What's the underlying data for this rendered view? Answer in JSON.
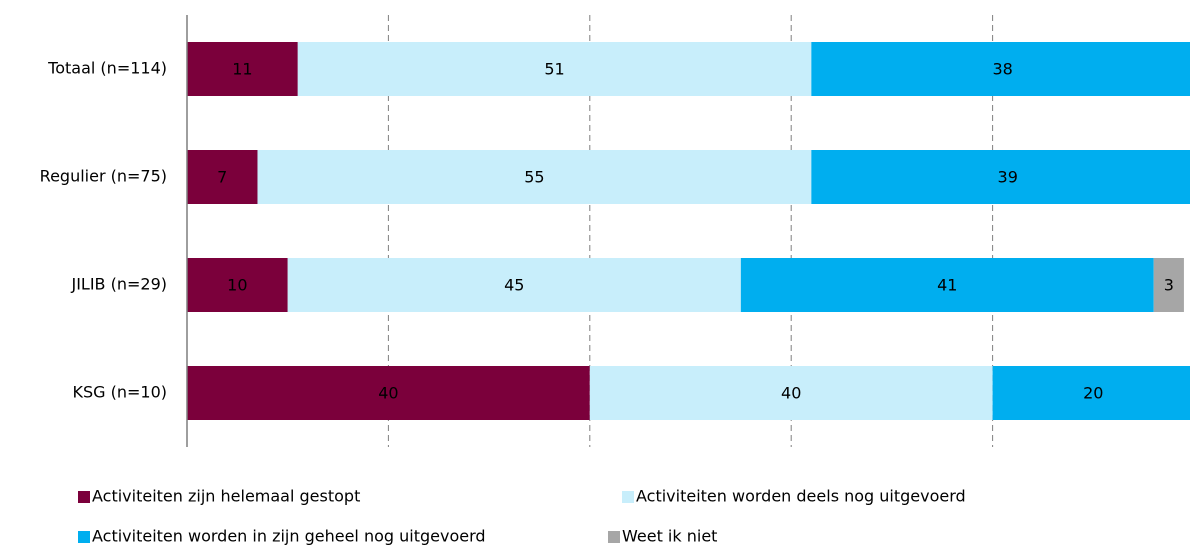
{
  "chart_data": {
    "type": "stacked_barh",
    "categories": [
      "Totaal (n=114)",
      "Regulier (n=75)",
      "JILIB (n=29)",
      "KSG (n=10)"
    ],
    "series": [
      {
        "name": "Activiteiten zijn helemaal gestopt",
        "color": "#7b003b",
        "values": [
          11,
          7,
          10,
          40
        ]
      },
      {
        "name": "Activiteiten worden deels nog uitgevoerd",
        "color": "#c8eefb",
        "values": [
          51,
          55,
          45,
          40
        ]
      },
      {
        "name": "Activiteiten worden in zijn geheel nog uitgevoerd",
        "color": "#00aeef",
        "values": [
          38,
          39,
          41,
          20
        ]
      },
      {
        "name": "Weet ik niet",
        "color": "#a6a6a6",
        "values": [
          1,
          0,
          3,
          0
        ]
      }
    ],
    "xlim": [
      0,
      100
    ],
    "xticks": [
      20,
      40,
      60,
      80
    ],
    "grid": true
  }
}
